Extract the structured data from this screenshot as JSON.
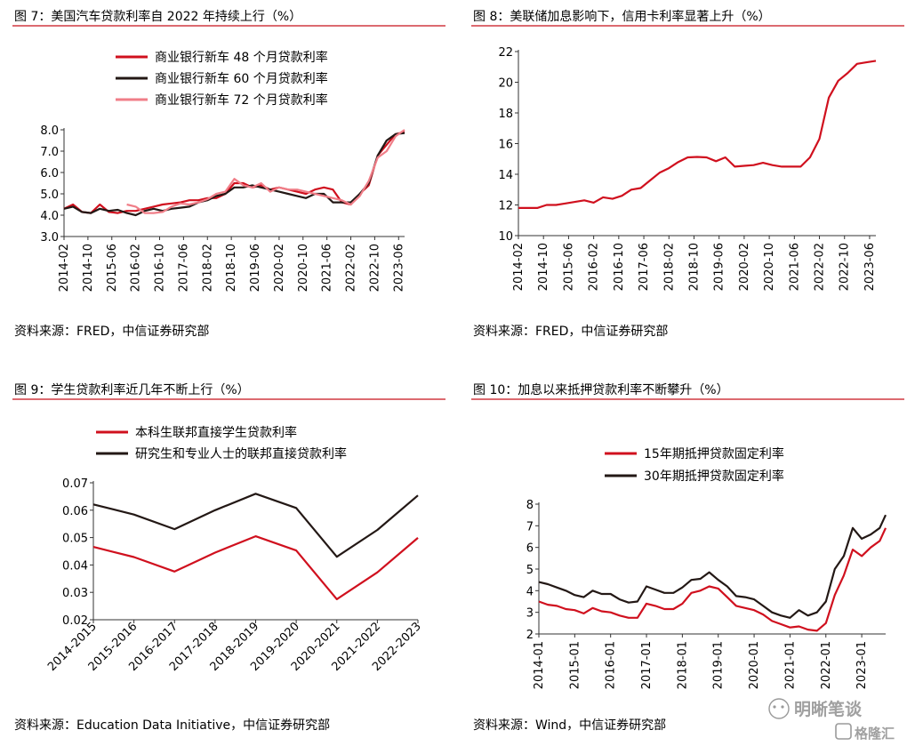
{
  "chart_data": [
    {
      "type": "line",
      "title": "图 7：美国汽车贷款利率自 2022 年持续上行（%）",
      "source": "资料来源：FRED，中信证券研究部",
      "x_ticks": [
        "2014-02",
        "2014-10",
        "2015-06",
        "2016-02",
        "2016-10",
        "2017-06",
        "2018-02",
        "2018-10",
        "2019-06",
        "2020-02",
        "2020-10",
        "2021-06",
        "2022-02",
        "2022-10",
        "2023-06"
      ],
      "y_ticks": [
        "3.0",
        "4.0",
        "5.0",
        "6.0",
        "7.0",
        "8.0"
      ],
      "ylim": [
        3,
        8
      ],
      "grid": false,
      "legend_position": "top",
      "x": [
        "2014-02",
        "2014-05",
        "2014-08",
        "2014-11",
        "2015-02",
        "2015-05",
        "2015-08",
        "2015-11",
        "2016-02",
        "2016-05",
        "2016-08",
        "2016-11",
        "2017-02",
        "2017-05",
        "2017-08",
        "2017-11",
        "2018-02",
        "2018-05",
        "2018-08",
        "2018-11",
        "2019-02",
        "2019-05",
        "2019-08",
        "2019-11",
        "2020-02",
        "2020-05",
        "2020-08",
        "2020-11",
        "2021-02",
        "2021-05",
        "2021-08",
        "2021-11",
        "2022-02",
        "2022-05",
        "2022-08",
        "2022-11",
        "2023-02",
        "2023-05",
        "2023-08"
      ],
      "series": [
        {
          "name": "商业银行新车 48 个月贷款利率",
          "color": "#d0101e",
          "values": [
            4.3,
            4.5,
            4.15,
            4.1,
            4.5,
            4.15,
            4.1,
            4.2,
            4.2,
            4.3,
            4.4,
            4.5,
            4.55,
            4.6,
            4.7,
            4.7,
            4.8,
            4.8,
            5.0,
            5.5,
            5.5,
            5.3,
            5.4,
            5.2,
            5.3,
            5.2,
            5.1,
            5.0,
            5.2,
            5.3,
            5.2,
            4.6,
            4.5,
            5.0,
            5.4,
            6.8,
            7.3,
            7.8,
            7.9
          ]
        },
        {
          "name": "商业银行新车 60 个月贷款利率",
          "color": "#231815",
          "values": [
            4.3,
            4.4,
            4.15,
            4.1,
            4.3,
            4.2,
            4.25,
            4.1,
            4.0,
            4.2,
            4.3,
            4.2,
            4.3,
            4.35,
            4.4,
            4.6,
            4.7,
            4.9,
            5.0,
            5.3,
            5.3,
            5.4,
            5.3,
            5.2,
            5.1,
            5.0,
            4.9,
            4.8,
            5.0,
            5.0,
            4.6,
            4.6,
            4.6,
            5.0,
            5.5,
            6.8,
            7.5,
            7.8,
            7.85
          ]
        },
        {
          "name": "商业银行新车 72 个月贷款利率",
          "color": "#f07e88",
          "values": [
            null,
            null,
            null,
            null,
            null,
            null,
            null,
            4.5,
            4.4,
            4.1,
            4.1,
            4.15,
            4.4,
            4.55,
            4.5,
            4.6,
            4.75,
            5.0,
            5.1,
            5.7,
            5.4,
            5.3,
            5.5,
            5.1,
            5.3,
            5.2,
            5.2,
            5.1,
            5.0,
            4.9,
            4.8,
            4.7,
            4.5,
            4.9,
            5.6,
            6.7,
            7.0,
            7.7,
            8.0
          ]
        }
      ]
    },
    {
      "type": "line",
      "title": "图 8：美联储加息影响下，信用卡利率显著上升（%）",
      "source": "资料来源：FRED，中信证券研究部",
      "x_ticks": [
        "2014-02",
        "2014-10",
        "2015-06",
        "2016-02",
        "2016-10",
        "2017-06",
        "2018-02",
        "2018-10",
        "2019-06",
        "2020-02",
        "2020-10",
        "2021-06",
        "2022-02",
        "2022-10",
        "2023-06"
      ],
      "y_ticks": [
        "10",
        "12",
        "14",
        "16",
        "18",
        "20",
        "22"
      ],
      "ylim": [
        10,
        22
      ],
      "grid": false,
      "legend_position": "none",
      "x": [
        "2014-02",
        "2014-05",
        "2014-08",
        "2014-11",
        "2015-02",
        "2015-05",
        "2015-08",
        "2015-11",
        "2016-02",
        "2016-05",
        "2016-08",
        "2016-11",
        "2017-02",
        "2017-05",
        "2017-08",
        "2017-11",
        "2018-02",
        "2018-05",
        "2018-08",
        "2018-11",
        "2019-02",
        "2019-05",
        "2019-08",
        "2019-11",
        "2020-02",
        "2020-05",
        "2020-08",
        "2020-11",
        "2021-02",
        "2021-05",
        "2021-08",
        "2021-11",
        "2022-02",
        "2022-05",
        "2022-08",
        "2022-11",
        "2023-02",
        "2023-05",
        "2023-08"
      ],
      "series": [
        {
          "name": "",
          "color": "#d0101e",
          "values": [
            11.8,
            11.8,
            11.8,
            12.0,
            12.0,
            12.1,
            12.2,
            12.3,
            12.15,
            12.5,
            12.4,
            12.6,
            13.0,
            13.1,
            13.6,
            14.1,
            14.4,
            14.8,
            15.1,
            15.13,
            15.1,
            14.85,
            15.1,
            14.5,
            14.55,
            14.6,
            14.75,
            14.6,
            14.5,
            14.5,
            14.5,
            15.1,
            16.3,
            19.0,
            20.1,
            20.6,
            21.2,
            21.3,
            21.4
          ]
        }
      ]
    },
    {
      "type": "line",
      "title": "图 9：学生贷款利率近几年不断上行（%）",
      "source": "资料来源：Education Data Initiative，中信证券研究部",
      "categories": [
        "2014-2015",
        "2015-2016",
        "2016-2017",
        "2017-2018",
        "2018-2019",
        "2019-2020",
        "2020-2021",
        "2021-2022",
        "2022-2023"
      ],
      "y_ticks": [
        "0.02",
        "0.03",
        "0.04",
        "0.05",
        "0.06",
        "0.07"
      ],
      "ylim": [
        0.02,
        0.07
      ],
      "grid": false,
      "legend_position": "top",
      "series": [
        {
          "name": "本科生联邦直接学生贷款利率",
          "color": "#d0101e",
          "values": [
            0.0466,
            0.0429,
            0.0376,
            0.0445,
            0.0505,
            0.0453,
            0.0275,
            0.0373,
            0.0499
          ]
        },
        {
          "name": "研究生和专业人士的联邦直接贷款利率",
          "color": "#231815",
          "values": [
            0.0621,
            0.0584,
            0.0531,
            0.06,
            0.066,
            0.0608,
            0.043,
            0.0528,
            0.0654
          ]
        }
      ]
    },
    {
      "type": "line",
      "title": "图 10：加息以来抵押贷款利率不断攀升（%）",
      "source": "资料来源：Wind，中信证券研究部",
      "x_ticks": [
        "2014-01",
        "2015-01",
        "2016-01",
        "2017-01",
        "2018-01",
        "2019-01",
        "2020-01",
        "2021-01",
        "2022-01",
        "2023-01"
      ],
      "y_ticks": [
        "2",
        "3",
        "4",
        "5",
        "6",
        "7",
        "8"
      ],
      "ylim": [
        2,
        8
      ],
      "grid": false,
      "legend_position": "top",
      "x": [
        "2014-01",
        "2014-04",
        "2014-07",
        "2014-10",
        "2015-01",
        "2015-04",
        "2015-07",
        "2015-10",
        "2016-01",
        "2016-04",
        "2016-07",
        "2016-10",
        "2017-01",
        "2017-04",
        "2017-07",
        "2017-10",
        "2018-01",
        "2018-04",
        "2018-07",
        "2018-10",
        "2019-01",
        "2019-04",
        "2019-07",
        "2019-10",
        "2020-01",
        "2020-04",
        "2020-07",
        "2020-10",
        "2021-01",
        "2021-04",
        "2021-07",
        "2021-10",
        "2022-01",
        "2022-04",
        "2022-07",
        "2022-10",
        "2023-01",
        "2023-04",
        "2023-07",
        "2023-09"
      ],
      "series": [
        {
          "name": "15年期抵押贷款固定利率",
          "color": "#d0101e",
          "values": [
            3.5,
            3.35,
            3.3,
            3.15,
            3.1,
            2.95,
            3.2,
            3.05,
            3.0,
            2.85,
            2.75,
            2.75,
            3.4,
            3.3,
            3.15,
            3.15,
            3.4,
            3.9,
            4.0,
            4.2,
            4.1,
            3.7,
            3.3,
            3.2,
            3.1,
            2.9,
            2.6,
            2.45,
            2.3,
            2.35,
            2.2,
            2.15,
            2.5,
            3.8,
            4.7,
            5.9,
            5.6,
            6.0,
            6.3,
            6.9
          ]
        },
        {
          "name": "30年期抵押贷款固定利率",
          "color": "#231815",
          "values": [
            4.4,
            4.3,
            4.15,
            4.0,
            3.8,
            3.7,
            4.0,
            3.85,
            3.85,
            3.6,
            3.45,
            3.5,
            4.2,
            4.05,
            3.9,
            3.9,
            4.15,
            4.5,
            4.55,
            4.85,
            4.5,
            4.2,
            3.75,
            3.7,
            3.6,
            3.3,
            3.0,
            2.85,
            2.75,
            3.1,
            2.85,
            3.0,
            3.5,
            5.0,
            5.6,
            6.9,
            6.4,
            6.6,
            6.9,
            7.5
          ]
        }
      ]
    }
  ],
  "watermarks": [
    "明晰笔谈",
    "格隆汇"
  ]
}
